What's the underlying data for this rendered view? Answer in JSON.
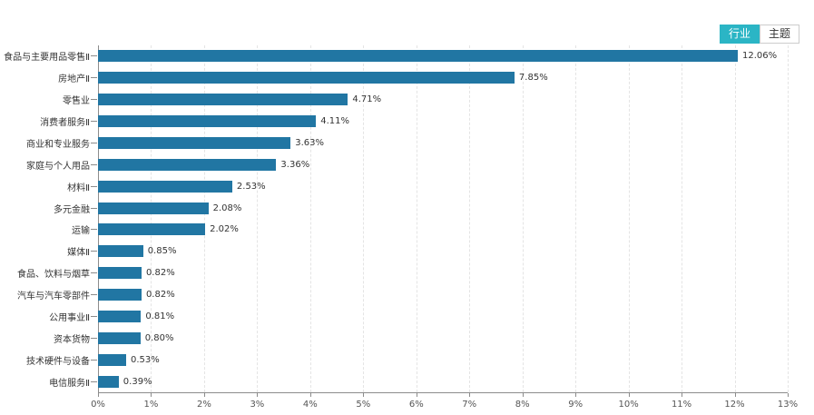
{
  "toolbar": {
    "tabs": [
      {
        "label": "行业",
        "active": true
      },
      {
        "label": "主题",
        "active": false
      }
    ]
  },
  "colors": {
    "bar": "#2176a3",
    "active_tab": "#2bb5c5",
    "axis": "#8c8c8c",
    "grid": "#e4e4e4",
    "text": "#333333"
  },
  "chart_data": {
    "type": "bar",
    "orientation": "horizontal",
    "title": "",
    "xlabel": "",
    "ylabel": "",
    "grid": true,
    "xlim": [
      0,
      13
    ],
    "x_ticks": [
      "0%",
      "1%",
      "2%",
      "3%",
      "4%",
      "5%",
      "6%",
      "7%",
      "8%",
      "9%",
      "10%",
      "11%",
      "12%",
      "13%"
    ],
    "categories": [
      "食品与主要用品零售Ⅱ",
      "房地产Ⅱ",
      "零售业",
      "消费者服务Ⅱ",
      "商业和专业服务",
      "家庭与个人用品",
      "材料Ⅱ",
      "多元金融",
      "运输",
      "媒体Ⅱ",
      "食品、饮料与烟草",
      "汽车与汽车零部件",
      "公用事业Ⅱ",
      "资本货物",
      "技术硬件与设备",
      "电信服务Ⅱ"
    ],
    "values": [
      12.06,
      7.85,
      4.71,
      4.11,
      3.63,
      3.36,
      2.53,
      2.08,
      2.02,
      0.85,
      0.82,
      0.82,
      0.81,
      0.8,
      0.53,
      0.39
    ],
    "value_labels": [
      "12.06%",
      "7.85%",
      "4.71%",
      "4.11%",
      "3.63%",
      "3.36%",
      "2.53%",
      "2.08%",
      "2.02%",
      "0.85%",
      "0.82%",
      "0.82%",
      "0.81%",
      "0.80%",
      "0.53%",
      "0.39%"
    ],
    "bar_color": "#2176a3"
  }
}
